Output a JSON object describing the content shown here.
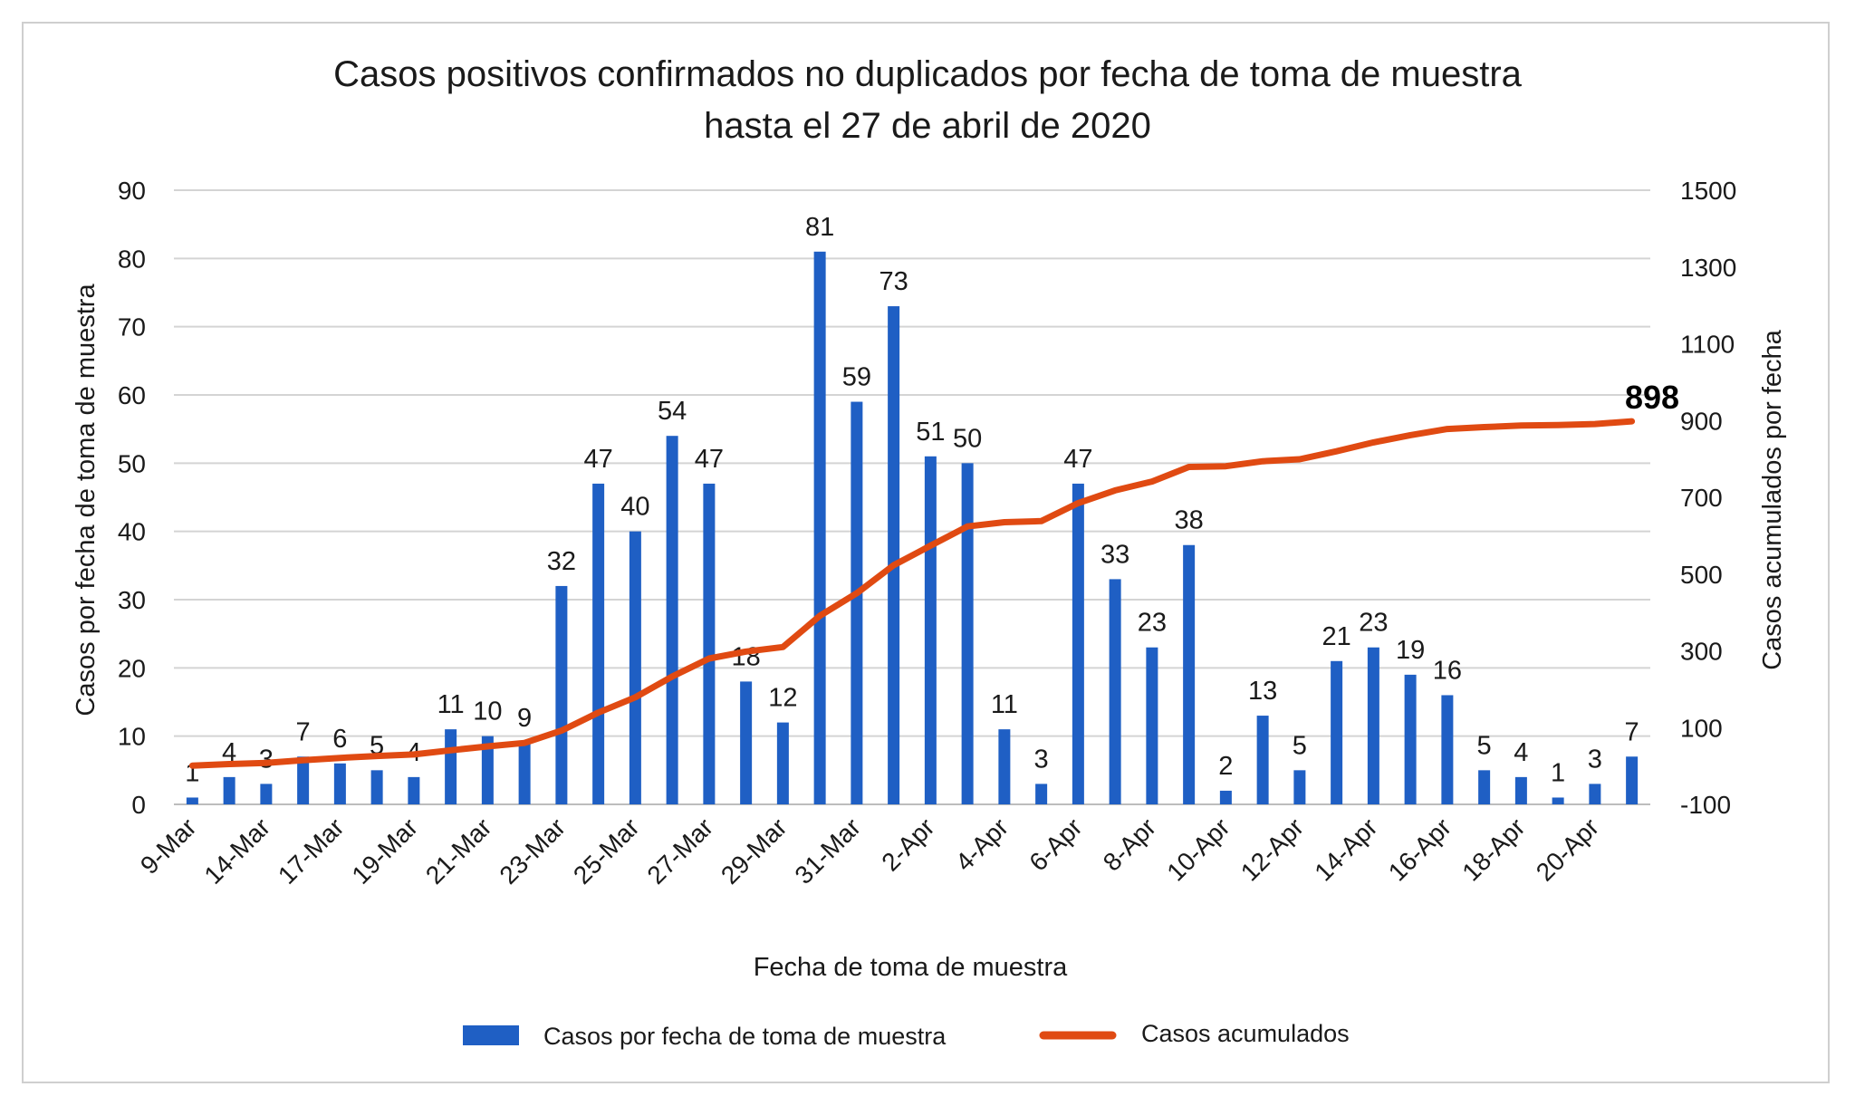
{
  "chart_data": {
    "type": "bar",
    "title": "Casos positivos confirmados no duplicados por fecha de toma de muestra",
    "subtitle": "hasta el 27 de abril de 2020",
    "xlabel": "Fecha de toma de muestra",
    "ylabel_left": "Casos por fecha de toma de muestra",
    "ylabel_right": "Casos acumulados  por fecha",
    "ylim_left": [
      0,
      90
    ],
    "ylim_right": [
      -100,
      1500
    ],
    "yticks_left": [
      0,
      10,
      20,
      30,
      40,
      50,
      60,
      70,
      80,
      90
    ],
    "yticks_right": [
      -100,
      100,
      300,
      500,
      700,
      900,
      1100,
      1300,
      1500
    ],
    "grid": true,
    "legend_position": "bottom",
    "colors": {
      "bars": "#1f5fc4",
      "line": "#e04a12",
      "grid": "#d4d4d4"
    },
    "x_tick_labels": [
      "9-Mar",
      "14-Mar",
      "17-Mar",
      "19-Mar",
      "21-Mar",
      "23-Mar",
      "25-Mar",
      "27-Mar",
      "29-Mar",
      "31-Mar",
      "2-Apr",
      "4-Apr",
      "6-Apr",
      "8-Apr",
      "10-Apr",
      "12-Apr",
      "14-Apr",
      "16-Apr",
      "18-Apr",
      "20-Apr"
    ],
    "series": [
      {
        "name": "Casos por fecha de toma de muestra",
        "type": "bar",
        "axis": "left",
        "values": [
          1,
          4,
          3,
          7,
          6,
          5,
          4,
          11,
          10,
          9,
          32,
          47,
          40,
          54,
          47,
          18,
          12,
          81,
          59,
          73,
          51,
          50,
          11,
          3,
          47,
          33,
          23,
          38,
          2,
          13,
          5,
          21,
          23,
          19,
          16,
          5,
          4,
          1,
          3,
          7
        ]
      },
      {
        "name": "Casos acumulados",
        "type": "line",
        "axis": "right",
        "values": [
          1,
          5,
          8,
          15,
          21,
          26,
          30,
          41,
          51,
          60,
          92,
          139,
          179,
          233,
          280,
          298,
          310,
          391,
          450,
          523,
          574,
          624,
          635,
          638,
          685,
          718,
          741,
          779,
          781,
          794,
          799,
          820,
          843,
          862,
          878,
          883,
          887,
          888,
          891,
          898
        ]
      }
    ],
    "final_total_label": "898"
  }
}
